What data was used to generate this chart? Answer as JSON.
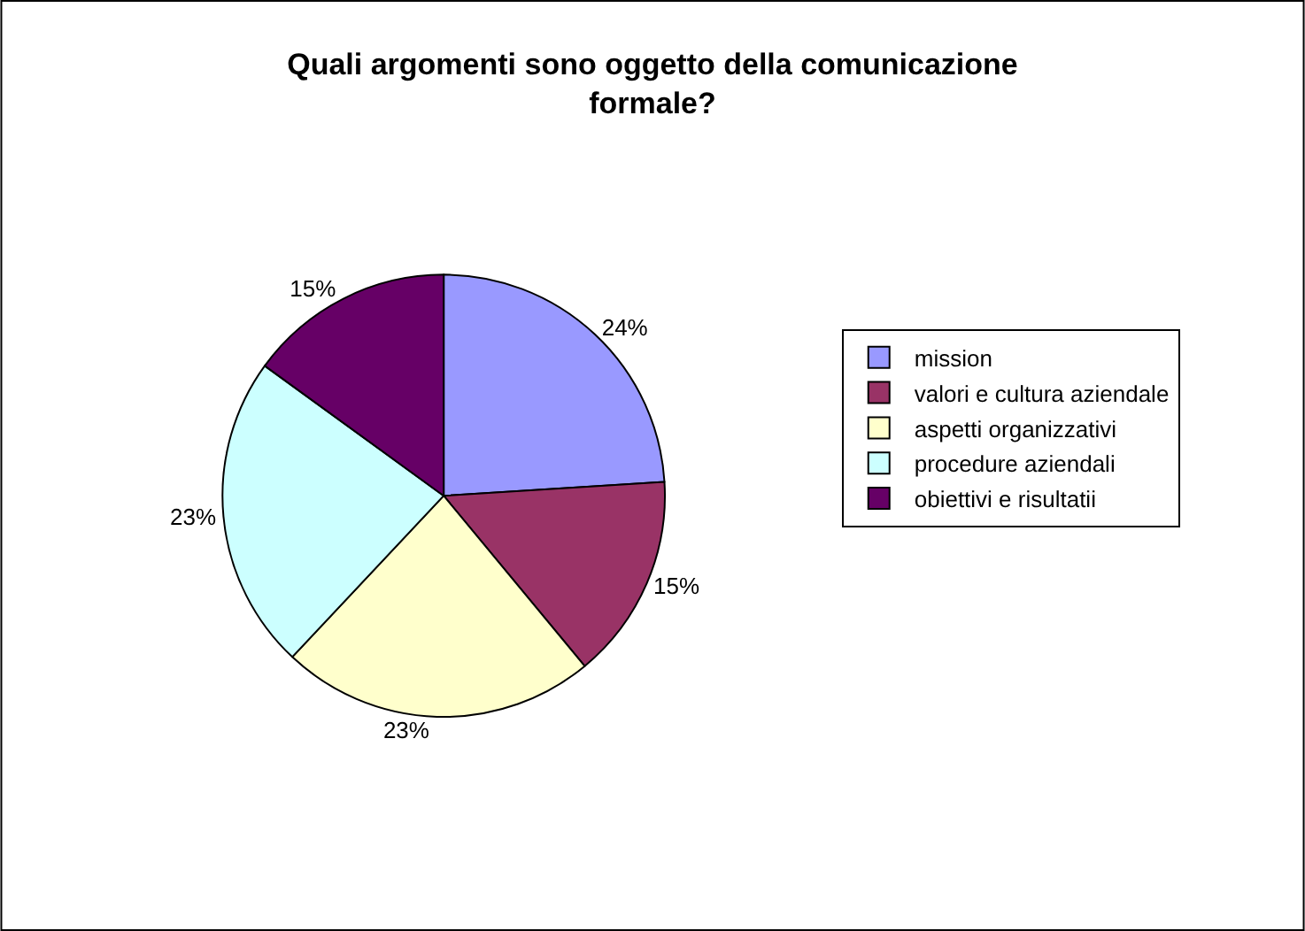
{
  "chart_data": {
    "type": "pie",
    "title": "Quali argomenti sono oggetto della comunicazione formale?",
    "categories": [
      "mission",
      "valori e cultura aziendale",
      "aspetti organizzativi",
      "procedure aziendali",
      "obiettivi e risultatii"
    ],
    "values": [
      24,
      15,
      23,
      23,
      15
    ],
    "colors": [
      "#9999ff",
      "#993366",
      "#ffffcc",
      "#ccffff",
      "#660066"
    ],
    "value_labels": [
      "24%",
      "15%",
      "23%",
      "23%",
      "15%"
    ],
    "legend": "right"
  }
}
